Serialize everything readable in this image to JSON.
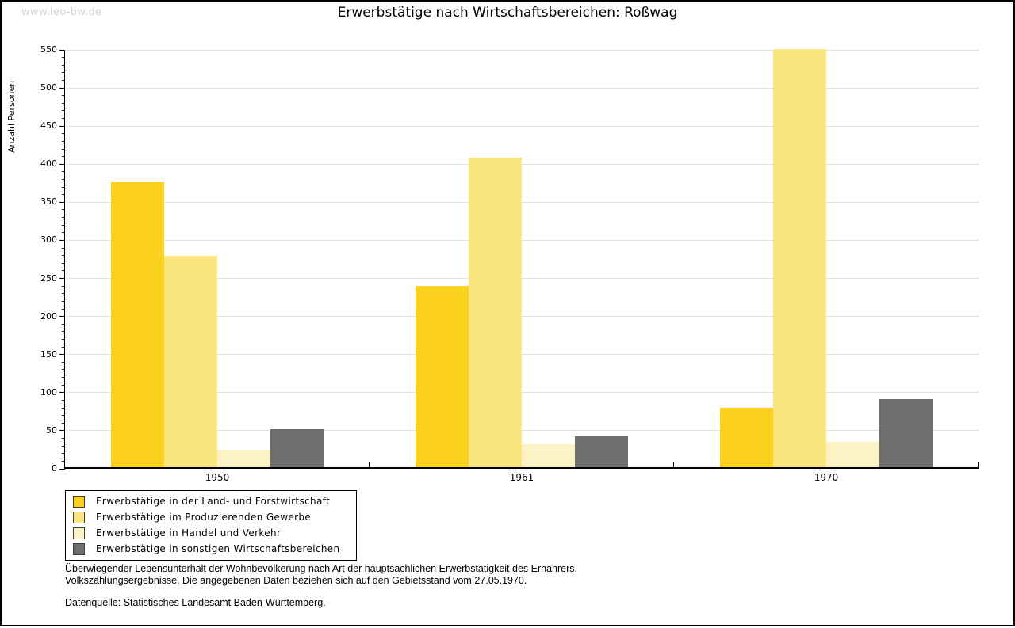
{
  "page": {
    "watermark": "www.leo-bw.de",
    "title": "Erwerbstätige nach Wirtschaftsbereichen: Roßwag"
  },
  "chart_data": {
    "type": "bar",
    "title": "Erwerbstätige nach Wirtschaftsbereichen: Roßwag",
    "xlabel": "",
    "ylabel": "Anzahl Personen",
    "ylim": [
      0,
      550
    ],
    "ytick_step": 50,
    "minor_tick_step": 10,
    "grid": true,
    "legend_position": "bottom-left",
    "categories": [
      "1950",
      "1961",
      "1970"
    ],
    "series": [
      {
        "name": "Erwerbstätige in der Land- und Forstwirtschaft",
        "color": "#FBD11E",
        "values": [
          376,
          240,
          80
        ]
      },
      {
        "name": "Erwerbstätige im Produzierenden Gewerbe",
        "color": "#FAE67C",
        "values": [
          280,
          409,
          551
        ]
      },
      {
        "name": "Erwerbstätige in Handel und Verkehr",
        "color": "#FBF2C6",
        "values": [
          25,
          32,
          35
        ]
      },
      {
        "name": "Erwerbstätige in sonstigen Wirtschaftsbereichen",
        "color": "#6E6E6E",
        "values": [
          52,
          44,
          91
        ]
      }
    ]
  },
  "footer": {
    "line1": "Überwiegender Lebensunterhalt der Wohnbevölkerung nach Art der hauptsächlichen Erwerbstätigkeit des Ernährers.",
    "line2": "Volkszählungsergebnisse. Die angegebenen Daten beziehen sich auf den Gebietsstand vom 27.05.1970.",
    "source": "Datenquelle: Statistisches Landesamt Baden-Württemberg."
  },
  "colors": {
    "grid": "#E1E1E1",
    "axis": "#000000",
    "watermark": "#D2D2D2",
    "legend_border": "#000000",
    "swatch_border": "#3F3F3F"
  }
}
